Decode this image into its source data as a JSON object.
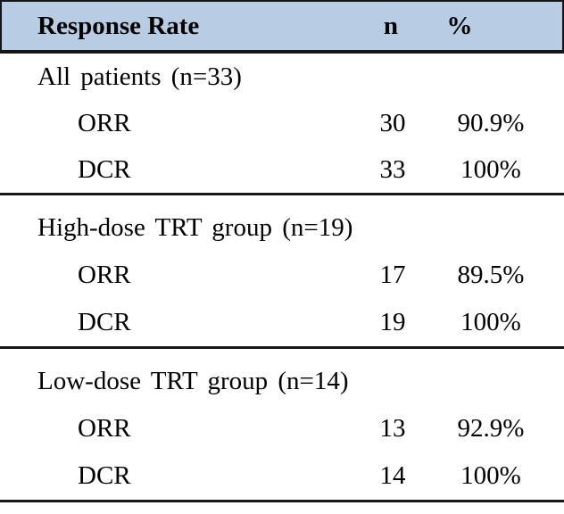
{
  "table": {
    "header": {
      "col1": "Response Rate",
      "col2": "n",
      "col3": "%"
    },
    "sections": [
      {
        "title": "All patients (n=33)",
        "rows": [
          {
            "label": "ORR",
            "n": "30",
            "pct": "90.9%"
          },
          {
            "label": "DCR",
            "n": "33",
            "pct": "100%"
          }
        ]
      },
      {
        "title": "High-dose TRT group (n=19)",
        "rows": [
          {
            "label": "ORR",
            "n": "17",
            "pct": "89.5%"
          },
          {
            "label": "DCR",
            "n": "19",
            "pct": "100%"
          }
        ]
      },
      {
        "title": "Low-dose TRT group (n=14)",
        "rows": [
          {
            "label": "ORR",
            "n": "13",
            "pct": "92.9%"
          },
          {
            "label": "DCR",
            "n": "14",
            "pct": "100%"
          }
        ]
      }
    ],
    "colors": {
      "header_bg": "#b8cce4",
      "border": "#161616",
      "text": "#000000",
      "page_bg": "#ffffff"
    }
  }
}
